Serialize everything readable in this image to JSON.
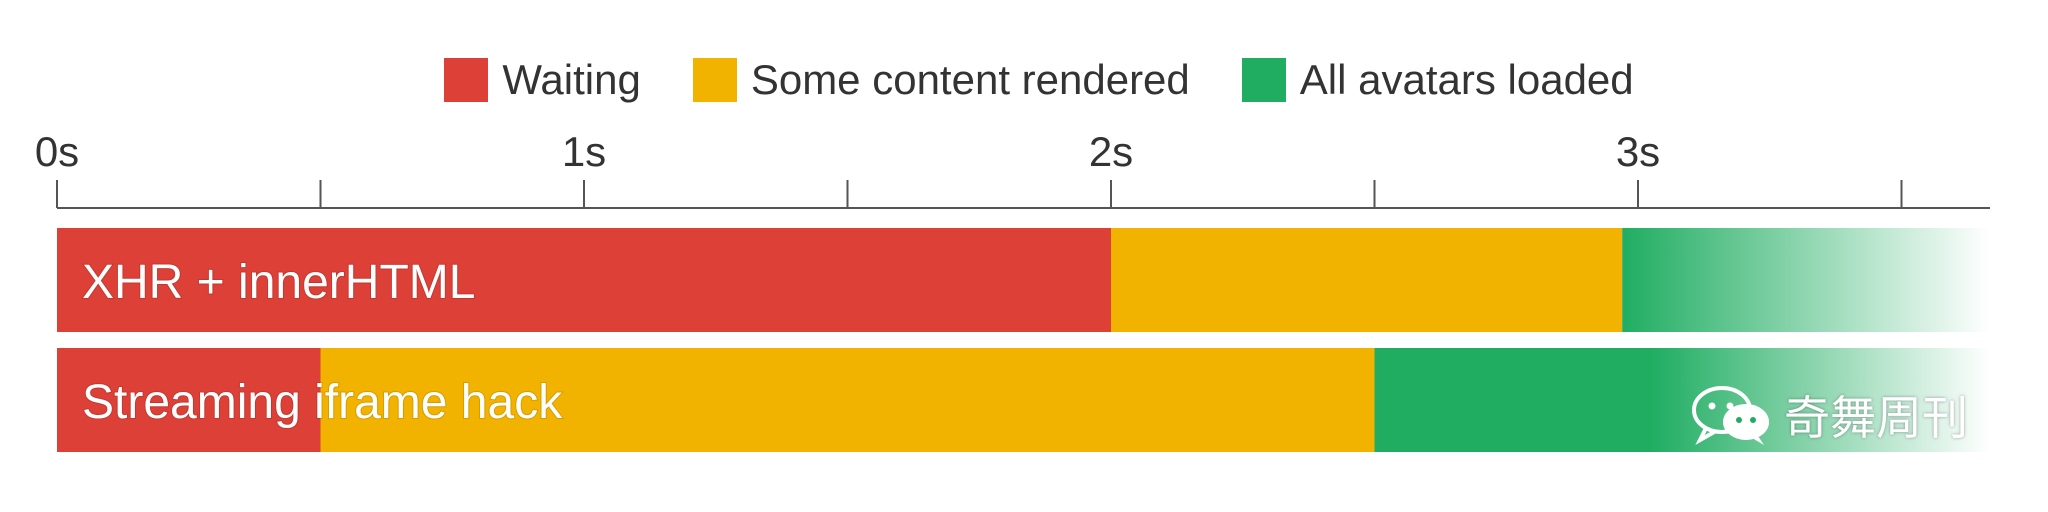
{
  "chart_data": {
    "type": "bar",
    "orientation": "horizontal-stacked-timeline",
    "x_ticks": [
      "0s",
      "1s",
      "2s",
      "3s"
    ],
    "xlim": [
      0,
      3.5
    ],
    "grid": false,
    "legend": [
      {
        "label": "Waiting",
        "color": "#dc4037"
      },
      {
        "label": "Some content rendered",
        "color": "#f2b200"
      },
      {
        "label": "All avatars loaded",
        "color": "#20ad62"
      }
    ],
    "legend_placement": "top-center",
    "rows": [
      {
        "label": "XHR + innerHTML",
        "segments": [
          {
            "phase": "Waiting",
            "start": 0,
            "end": 2.0
          },
          {
            "phase": "Some content rendered",
            "start": 2.0,
            "end": 2.97
          },
          {
            "phase": "All avatars loaded",
            "start": 2.97,
            "end": 3.5
          }
        ]
      },
      {
        "label": "Streaming iframe hack",
        "segments": [
          {
            "phase": "Waiting",
            "start": 0,
            "end": 0.5
          },
          {
            "phase": "Some content rendered",
            "start": 0.5,
            "end": 2.5
          },
          {
            "phase": "All avatars loaded",
            "start": 2.5,
            "end": 3.5
          }
        ]
      }
    ]
  },
  "watermark": {
    "text": "奇舞周刊",
    "icon": "wechat-icon"
  }
}
